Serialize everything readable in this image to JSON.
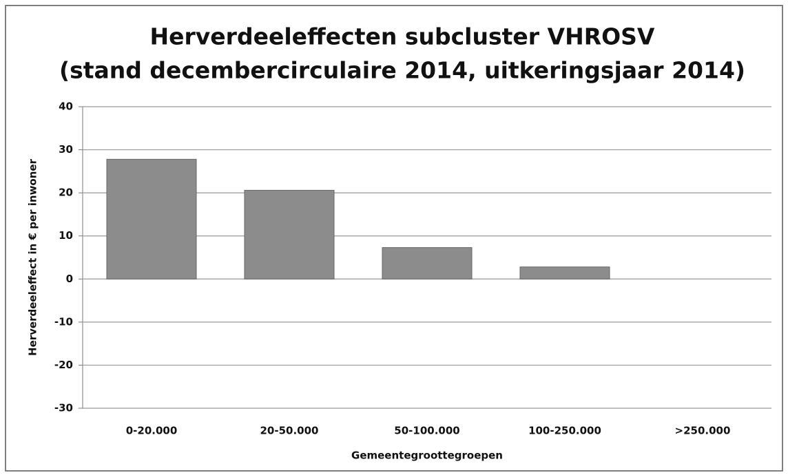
{
  "chart_data": {
    "type": "bar",
    "title": [
      "Herverdeeleffecten subcluster VHROSV",
      "(stand decembercirculaire 2014, uitkeringsjaar 2014)"
    ],
    "x_label": "Gemeentegroottegroepen",
    "y_label": "Herverdeeleffect in € per inwoner",
    "categories": [
      "0-20.000",
      "20-50.000",
      "50-100.000",
      "100-250.000",
      ">250.000"
    ],
    "values": [
      27.8,
      20.6,
      7.3,
      2.8,
      0
    ],
    "color": "#8c8c8c",
    "ylim": [
      -30,
      40
    ],
    "yticks": [
      -30,
      -20,
      -10,
      0,
      10,
      20,
      30,
      40
    ],
    "grid": true
  }
}
